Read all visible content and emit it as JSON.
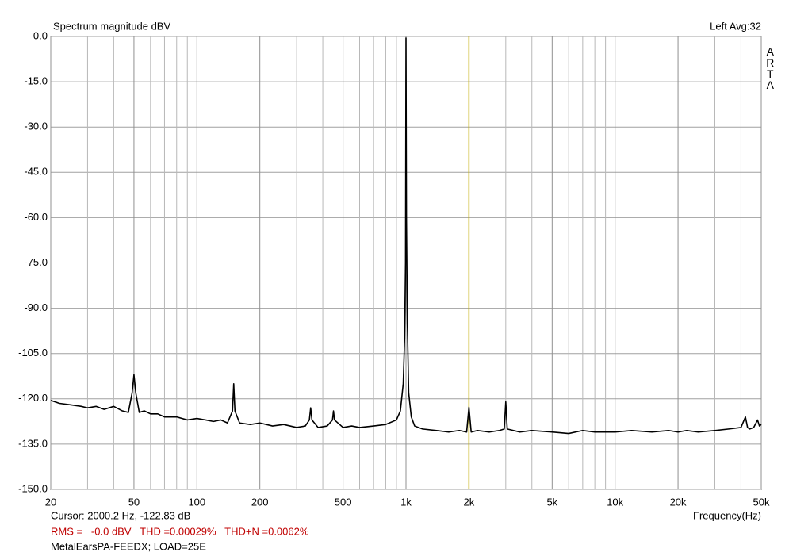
{
  "chart_data": {
    "type": "line",
    "title": "Spectrum magnitude dBV",
    "channel_label": "Left  Avg:32",
    "brand": "ARTA",
    "x_label": "Frequency(Hz)",
    "xscale": "log",
    "grid": true,
    "xlim": [
      20,
      50000
    ],
    "ylim": [
      -150,
      0
    ],
    "xticks": [
      20,
      50,
      100,
      200,
      500,
      {
        "value": 1000,
        "label": "1k"
      },
      {
        "value": 2000,
        "label": "2k"
      },
      {
        "value": 5000,
        "label": "5k"
      },
      {
        "value": 10000,
        "label": "10k"
      },
      {
        "value": 20000,
        "label": "20k"
      },
      {
        "value": 50000,
        "label": "50k"
      }
    ],
    "xminorticks": [
      30,
      40,
      60,
      70,
      80,
      90,
      300,
      400,
      600,
      700,
      800,
      900,
      3000,
      4000,
      6000,
      7000,
      8000,
      9000,
      30000,
      40000
    ],
    "yticks": [
      {
        "value": 0,
        "label": "0.0"
      },
      {
        "value": -15,
        "label": "-15.0"
      },
      {
        "value": -30,
        "label": "-30.0"
      },
      {
        "value": -45,
        "label": "-45.0"
      },
      {
        "value": -60,
        "label": "-60.0"
      },
      {
        "value": -75,
        "label": "-75.0"
      },
      {
        "value": -90,
        "label": "-90.0"
      },
      {
        "value": -105,
        "label": "-105.0"
      },
      {
        "value": -120,
        "label": "-120.0"
      },
      {
        "value": -135,
        "label": "-135.0"
      },
      {
        "value": -150,
        "label": "-150.0"
      }
    ],
    "cursor_x": 2000.2,
    "cursor_color": "#c8b400",
    "cursor_text": "Cursor:  2000.2 Hz, -122.83 dB",
    "measurements": "RMS =   -0.0 dBV   THD =0.00029%   THD+N =0.0062%",
    "footer": "MetalEarsPA-FEEDX; LOAD=25E",
    "x": [
      20,
      22,
      25,
      28,
      30,
      33,
      36,
      40,
      44,
      47,
      49,
      50,
      51,
      53,
      56,
      60,
      65,
      70,
      80,
      90,
      100,
      110,
      120,
      130,
      140,
      148,
      150,
      152,
      160,
      180,
      200,
      230,
      260,
      300,
      330,
      345,
      350,
      355,
      380,
      420,
      445,
      450,
      455,
      500,
      550,
      600,
      700,
      800,
      900,
      940,
      970,
      985,
      995,
      1000,
      1005,
      1015,
      1030,
      1060,
      1100,
      1200,
      1400,
      1600,
      1800,
      1950,
      2000,
      2050,
      2200,
      2500,
      2800,
      2950,
      3000,
      3050,
      3500,
      4000,
      5000,
      6000,
      7000,
      8000,
      10000,
      12000,
      15000,
      18000,
      20000,
      22000,
      25000,
      30000,
      35000,
      40000,
      42000,
      43000,
      44000,
      46000,
      48000,
      49000,
      50000
    ],
    "series": [
      {
        "name": "Left",
        "color": "#000000",
        "values": [
          -120.5,
          -121.5,
          -122,
          -122.5,
          -123,
          -122.5,
          -123.5,
          -122.5,
          -124,
          -124.5,
          -118,
          -112,
          -118,
          -124.5,
          -124,
          -125,
          -125,
          -126,
          -126,
          -127,
          -126.5,
          -127,
          -127.5,
          -127,
          -128,
          -124,
          -115,
          -124,
          -128,
          -128.5,
          -128,
          -129,
          -128.5,
          -129.5,
          -129,
          -127,
          -123,
          -127,
          -129.5,
          -129,
          -127,
          -124,
          -127,
          -129.5,
          -129,
          -129.5,
          -129,
          -128.5,
          -127,
          -124,
          -115,
          -100,
          -75,
          -0.5,
          -60,
          -95,
          -118,
          -126,
          -129,
          -130,
          -130.5,
          -131,
          -130.5,
          -131,
          -122.8,
          -131,
          -130.5,
          -131,
          -130.5,
          -130,
          -121,
          -130,
          -131,
          -130.5,
          -131,
          -131.5,
          -130.5,
          -131,
          -131,
          -130.5,
          -131,
          -130.5,
          -131,
          -130.5,
          -131,
          -130.5,
          -130,
          -129.5,
          -126,
          -129.5,
          -130,
          -129.5,
          -127,
          -129,
          -128.5
        ]
      }
    ]
  }
}
